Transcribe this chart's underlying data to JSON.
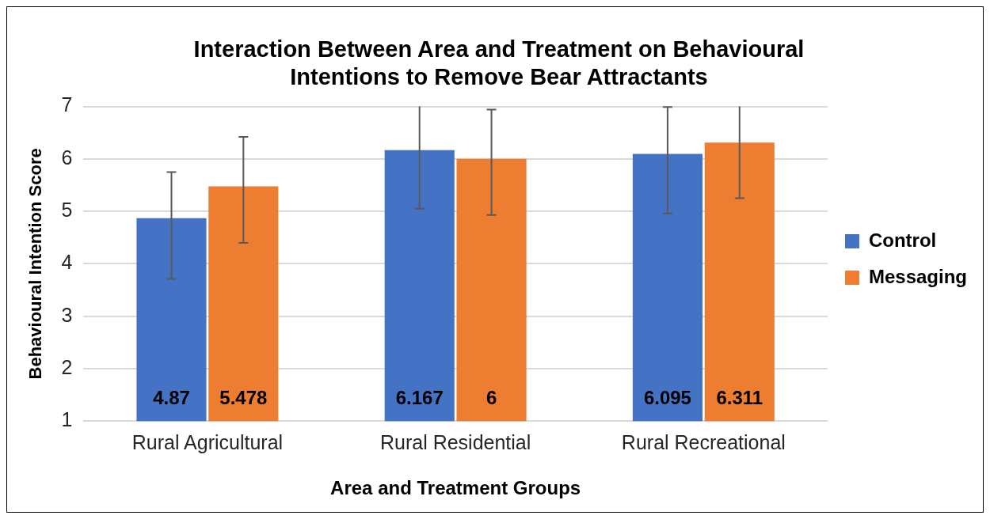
{
  "chart_data": {
    "type": "bar",
    "title": "Interaction Between Area and Treatment on Behavioural Intentions to Remove Bear Attractants",
    "xlabel": "Area and Treatment Groups",
    "ylabel": "Behavioural Intention Score",
    "categories": [
      "Rural Agricultural",
      "Rural Residential",
      "Rural Recreational"
    ],
    "series": [
      {
        "name": "Control",
        "color": "#4472c4",
        "values": [
          4.87,
          6.167,
          6.095
        ],
        "errors": [
          [
            3.71,
            5.75
          ],
          [
            5.05,
            7
          ],
          [
            4.96,
            6.99
          ]
        ]
      },
      {
        "name": "Messaging",
        "color": "#ed7d31",
        "values": [
          5.478,
          6,
          6.311
        ],
        "errors": [
          [
            4.4,
            6.42
          ],
          [
            4.93,
            6.94
          ],
          [
            5.25,
            7
          ]
        ]
      }
    ],
    "ylim": [
      1,
      7
    ],
    "yticks": [
      1,
      2,
      3,
      4,
      5,
      6,
      7
    ],
    "grid": "y",
    "legend": "right",
    "data_labels": true
  }
}
